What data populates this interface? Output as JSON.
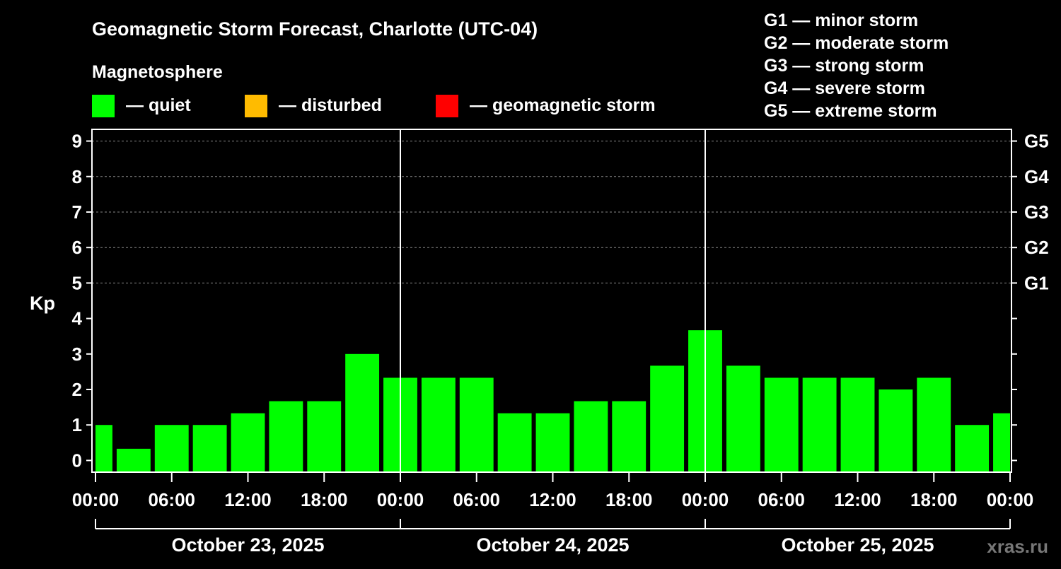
{
  "chart_data": {
    "type": "bar",
    "title": "Geomagnetic Storm Forecast, Charlotte (UTC-04)",
    "legend_title": "Magnetosphere",
    "legend": [
      {
        "label": "— quiet",
        "color": "#00ff00"
      },
      {
        "label": "— disturbed",
        "color": "#ffbb00"
      },
      {
        "label": "— geomagnetic storm",
        "color": "#ff0000"
      }
    ],
    "scale": [
      {
        "label": "G1 — minor storm"
      },
      {
        "label": "G2 — moderate storm"
      },
      {
        "label": "G3 — strong storm"
      },
      {
        "label": "G4 — severe storm"
      },
      {
        "label": "G5 — extreme storm"
      }
    ],
    "ylabel": "Kp",
    "ylim": [
      -0.33,
      9.33
    ],
    "yticks": [
      "0",
      "1",
      "2",
      "3",
      "4",
      "5",
      "6",
      "7",
      "8",
      "9"
    ],
    "right_ticks": [
      {
        "kp": 5,
        "label": "G1"
      },
      {
        "kp": 6,
        "label": "G2"
      },
      {
        "kp": 7,
        "label": "G3"
      },
      {
        "kp": 8,
        "label": "G4"
      },
      {
        "kp": 9,
        "label": "G5"
      }
    ],
    "x_hours_range": [
      0,
      72
    ],
    "xticks": [
      {
        "h": 0,
        "label": "00:00"
      },
      {
        "h": 6,
        "label": "06:00"
      },
      {
        "h": 12,
        "label": "12:00"
      },
      {
        "h": 18,
        "label": "18:00"
      },
      {
        "h": 24,
        "label": "00:00"
      },
      {
        "h": 30,
        "label": "06:00"
      },
      {
        "h": 36,
        "label": "12:00"
      },
      {
        "h": 42,
        "label": "18:00"
      },
      {
        "h": 48,
        "label": "00:00"
      },
      {
        "h": 54,
        "label": "06:00"
      },
      {
        "h": 60,
        "label": "12:00"
      },
      {
        "h": 66,
        "label": "18:00"
      },
      {
        "h": 72,
        "label": "00:00"
      }
    ],
    "days": [
      "October 23, 2025",
      "October 24, 2025",
      "October 25, 2025"
    ],
    "bar_hours": [
      0,
      3,
      6,
      9,
      12,
      15,
      18,
      21,
      24,
      27,
      30,
      33,
      36,
      39,
      42,
      45,
      48,
      51,
      54,
      57,
      60,
      63,
      66,
      69,
      72
    ],
    "values": [
      1.0,
      0.33,
      1.0,
      1.0,
      1.33,
      1.67,
      1.67,
      3.0,
      2.33,
      2.33,
      2.33,
      1.33,
      1.33,
      1.67,
      1.67,
      2.67,
      3.67,
      2.67,
      2.33,
      2.33,
      2.33,
      2.0,
      2.33,
      1.0,
      1.33
    ],
    "grid": "dashed at Kp 5-9",
    "watermark": "xras.ru"
  }
}
